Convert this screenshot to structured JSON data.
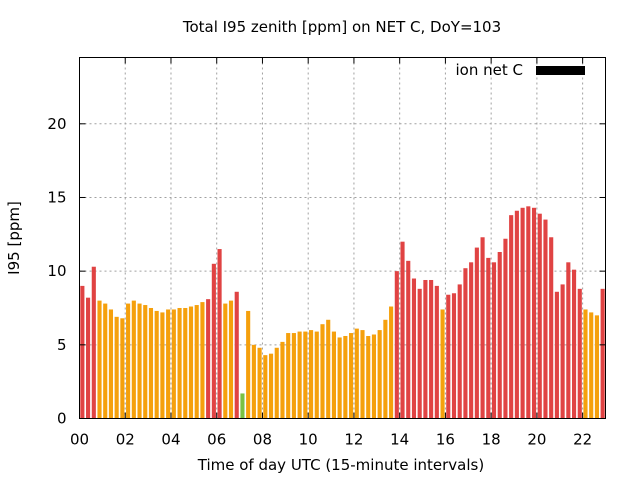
{
  "chart_data": {
    "type": "bar",
    "title": "Total I95 zenith [ppm] on NET C, DoY=103",
    "xlabel": "Time of day UTC (15-minute intervals)",
    "ylabel": "I95 [ppm]",
    "xlim": [
      0,
      23
    ],
    "ylim": [
      0,
      24.5
    ],
    "grid": true,
    "legend": {
      "label": "ion net C",
      "color": "#000000",
      "position": "top-right"
    },
    "x_ticks": [
      "00",
      "02",
      "04",
      "06",
      "08",
      "10",
      "12",
      "14",
      "16",
      "18",
      "20",
      "22"
    ],
    "y_ticks": [
      0,
      5,
      10,
      15,
      20
    ],
    "interval_hours": 0.25,
    "level_colors": {
      "low": "#7ac143",
      "medium": "#f5a00c",
      "high": "#e04343"
    },
    "values": [
      9.0,
      8.2,
      10.3,
      8.0,
      7.8,
      7.4,
      6.9,
      6.8,
      7.8,
      8.0,
      7.8,
      7.7,
      7.5,
      7.3,
      7.2,
      7.4,
      7.4,
      7.5,
      7.5,
      7.6,
      7.7,
      7.9,
      8.1,
      10.5,
      11.5,
      7.8,
      8.0,
      8.6,
      1.7,
      7.3,
      5.0,
      4.8,
      4.3,
      4.4,
      4.8,
      5.2,
      5.8,
      5.8,
      5.9,
      5.9,
      6.0,
      5.9,
      6.4,
      6.7,
      5.9,
      5.5,
      5.6,
      5.8,
      6.1,
      6.0,
      5.6,
      5.7,
      6.0,
      6.7,
      7.6,
      10.0,
      12.0,
      10.7,
      9.5,
      8.8,
      9.4,
      9.4,
      9.0,
      7.4,
      8.4,
      8.5,
      9.1,
      10.2,
      10.6,
      11.6,
      12.3,
      10.9,
      10.6,
      11.3,
      12.2,
      13.8,
      14.1,
      14.3,
      14.4,
      14.3,
      13.9,
      13.5,
      12.3,
      8.6,
      9.1,
      10.6,
      10.1,
      8.8,
      7.4,
      7.2,
      7.0,
      8.8
    ],
    "levels": [
      "high",
      "high",
      "high",
      "medium",
      "medium",
      "medium",
      "medium",
      "medium",
      "medium",
      "medium",
      "medium",
      "medium",
      "medium",
      "medium",
      "medium",
      "medium",
      "medium",
      "medium",
      "medium",
      "medium",
      "medium",
      "medium",
      "high",
      "high",
      "high",
      "medium",
      "medium",
      "high",
      "low",
      "medium",
      "medium",
      "medium",
      "medium",
      "medium",
      "medium",
      "medium",
      "medium",
      "medium",
      "medium",
      "medium",
      "medium",
      "medium",
      "medium",
      "medium",
      "medium",
      "medium",
      "medium",
      "medium",
      "medium",
      "medium",
      "medium",
      "medium",
      "medium",
      "medium",
      "medium",
      "high",
      "high",
      "high",
      "high",
      "high",
      "high",
      "high",
      "high",
      "medium",
      "high",
      "high",
      "high",
      "high",
      "high",
      "high",
      "high",
      "high",
      "high",
      "high",
      "high",
      "high",
      "high",
      "high",
      "high",
      "high",
      "high",
      "high",
      "high",
      "high",
      "high",
      "high",
      "high",
      "high",
      "medium",
      "medium",
      "medium",
      "high"
    ]
  }
}
